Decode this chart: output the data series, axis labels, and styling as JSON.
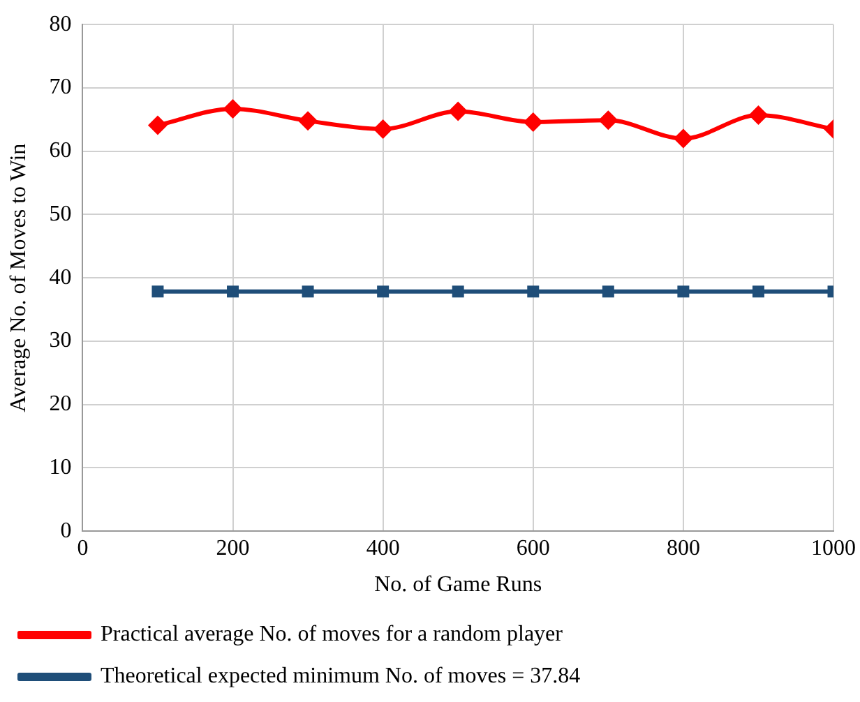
{
  "chart_data": {
    "type": "line",
    "xlabel": "No. of Game Runs",
    "ylabel": "Average No. of Moves to Win",
    "x": [
      100,
      200,
      300,
      400,
      500,
      600,
      700,
      800,
      900,
      1000
    ],
    "series": [
      {
        "name": "Practical average No. of moves for a random player",
        "color": "#ff0000",
        "marker": "diamond",
        "values": [
          64.1,
          66.7,
          64.8,
          63.5,
          66.3,
          64.6,
          64.9,
          62.0,
          65.7,
          63.5
        ]
      },
      {
        "name": "Theoretical expected minimum No. of moves = 37.84",
        "color": "#1f4e79",
        "marker": "square",
        "values": [
          37.84,
          37.84,
          37.84,
          37.84,
          37.84,
          37.84,
          37.84,
          37.84,
          37.84,
          37.84
        ]
      }
    ],
    "xlim": [
      0,
      1000
    ],
    "xticks": [
      0,
      200,
      400,
      600,
      800,
      1000
    ],
    "ylim": [
      0,
      80
    ],
    "yticks": [
      0,
      10,
      20,
      30,
      40,
      50,
      60,
      70,
      80
    ],
    "grid": true,
    "legend": "bottom"
  }
}
